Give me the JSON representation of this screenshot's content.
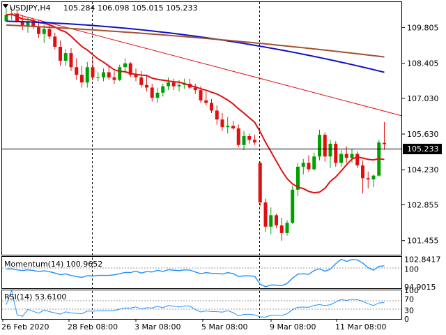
{
  "header": {
    "symbol_label": "USDJPY,H4",
    "ohlc_values": "105.284 106.098 105.015 105.233"
  },
  "colors": {
    "bull": "#00a000",
    "bear": "#e01010",
    "ma_fast": "#e01010",
    "ma_slow_blue": "#1010c8",
    "ma_slow_brown": "#a0522d",
    "trendline": "#e01010",
    "osc_line": "#1e90ff",
    "grid_dash": "#000000"
  },
  "price_axis": {
    "labels": [
      "109.805",
      "108.405",
      "107.030",
      "105.630",
      "104.230",
      "102.855",
      "101.455"
    ],
    "current_price": "105.233"
  },
  "momentum": {
    "label": "Momentum(14) 100.9652",
    "axis_labels": [
      "102.8417",
      "100",
      "94.9015"
    ]
  },
  "rsi": {
    "label": "RSI(14) 53.6100",
    "axis_labels": [
      "100",
      "70",
      "30",
      "0"
    ]
  },
  "time_axis": {
    "labels": [
      "26 Feb 2020",
      "28 Feb 08:00",
      "3 Mar 08:00",
      "5 Mar 08:00",
      "9 Mar 08:00",
      "11 Mar 08:00"
    ]
  },
  "chart_data": {
    "type": "candlestick",
    "title": "USDJPY,H4",
    "ylim": [
      100.9,
      110.8
    ],
    "candles": [
      [
        110.05,
        110.55,
        110.05,
        110.3
      ],
      [
        110.3,
        110.6,
        110.1,
        110.35
      ],
      [
        110.35,
        110.45,
        110.0,
        110.05
      ],
      [
        110.05,
        110.3,
        109.7,
        109.85
      ],
      [
        109.85,
        110.2,
        109.6,
        110.05
      ],
      [
        110.05,
        110.15,
        109.75,
        109.85
      ],
      [
        109.85,
        110.1,
        109.4,
        109.55
      ],
      [
        109.55,
        109.9,
        109.2,
        109.75
      ],
      [
        109.75,
        110.0,
        109.35,
        109.45
      ],
      [
        109.45,
        109.6,
        108.95,
        109.05
      ],
      [
        109.05,
        109.3,
        108.3,
        108.5
      ],
      [
        108.5,
        108.95,
        108.3,
        108.8
      ],
      [
        108.8,
        109.0,
        108.1,
        108.25
      ],
      [
        108.25,
        108.6,
        107.75,
        107.95
      ],
      [
        107.95,
        108.3,
        107.45,
        107.65
      ],
      [
        107.65,
        108.45,
        107.45,
        108.25
      ],
      [
        108.25,
        108.6,
        107.75,
        107.85
      ],
      [
        107.85,
        108.05,
        107.7,
        107.85
      ],
      [
        107.85,
        108.2,
        107.7,
        108.05
      ],
      [
        108.05,
        108.35,
        107.75,
        107.85
      ],
      [
        107.85,
        108.1,
        107.6,
        107.75
      ],
      [
        107.75,
        108.35,
        107.7,
        108.25
      ],
      [
        108.25,
        108.6,
        108.0,
        108.4
      ],
      [
        108.4,
        108.45,
        107.85,
        107.95
      ],
      [
        107.95,
        108.2,
        107.7,
        107.85
      ],
      [
        107.85,
        108.1,
        107.45,
        107.55
      ],
      [
        107.55,
        107.95,
        107.3,
        107.45
      ],
      [
        107.45,
        107.6,
        106.9,
        107.05
      ],
      [
        107.05,
        107.45,
        106.85,
        107.25
      ],
      [
        107.25,
        107.6,
        107.1,
        107.5
      ],
      [
        107.5,
        107.85,
        107.35,
        107.65
      ],
      [
        107.65,
        107.8,
        107.35,
        107.5
      ],
      [
        107.5,
        107.75,
        107.3,
        107.55
      ],
      [
        107.55,
        107.8,
        107.4,
        107.6
      ],
      [
        107.6,
        107.8,
        107.4,
        107.45
      ],
      [
        107.45,
        107.6,
        107.2,
        107.35
      ],
      [
        107.35,
        107.5,
        106.85,
        106.95
      ],
      [
        106.95,
        107.3,
        106.75,
        106.85
      ],
      [
        106.85,
        107.0,
        106.45,
        106.55
      ],
      [
        106.55,
        106.75,
        106.0,
        106.2
      ],
      [
        106.2,
        106.45,
        105.75,
        105.9
      ],
      [
        105.9,
        106.3,
        105.65,
        105.95
      ],
      [
        105.95,
        106.15,
        105.8,
        105.85
      ],
      [
        105.85,
        106.0,
        105.1,
        105.2
      ],
      [
        105.2,
        105.75,
        105.0,
        105.55
      ],
      [
        105.55,
        105.65,
        105.25,
        105.4
      ],
      [
        105.4,
        105.6,
        105.2,
        105.3
      ],
      [
        104.5,
        104.55,
        102.8,
        102.95
      ],
      [
        102.95,
        103.1,
        101.8,
        102.0
      ],
      [
        102.0,
        102.75,
        101.7,
        102.45
      ],
      [
        102.45,
        102.5,
        101.95,
        102.05
      ],
      [
        102.05,
        102.35,
        101.45,
        101.75
      ],
      [
        101.75,
        102.25,
        101.65,
        102.15
      ],
      [
        102.15,
        103.6,
        102.1,
        103.45
      ],
      [
        103.45,
        104.5,
        103.2,
        104.35
      ],
      [
        104.35,
        104.65,
        104.05,
        104.5
      ],
      [
        104.5,
        104.8,
        104.15,
        104.25
      ],
      [
        104.25,
        104.9,
        104.2,
        104.75
      ],
      [
        104.75,
        105.8,
        104.6,
        105.6
      ],
      [
        105.6,
        105.7,
        104.55,
        104.75
      ],
      [
        104.75,
        105.4,
        104.3,
        105.25
      ],
      [
        105.25,
        105.35,
        104.35,
        104.5
      ],
      [
        104.5,
        105.0,
        104.35,
        104.85
      ],
      [
        104.85,
        105.15,
        104.5,
        104.7
      ],
      [
        104.7,
        105.05,
        104.5,
        104.85
      ],
      [
        104.85,
        104.95,
        104.3,
        104.4
      ],
      [
        104.4,
        104.6,
        103.3,
        103.9
      ],
      [
        103.9,
        104.15,
        103.5,
        103.85
      ],
      [
        103.85,
        104.05,
        103.55,
        104.0
      ],
      [
        104.0,
        105.4,
        103.95,
        105.3
      ],
      [
        105.284,
        106.098,
        105.015,
        105.233
      ]
    ]
  }
}
